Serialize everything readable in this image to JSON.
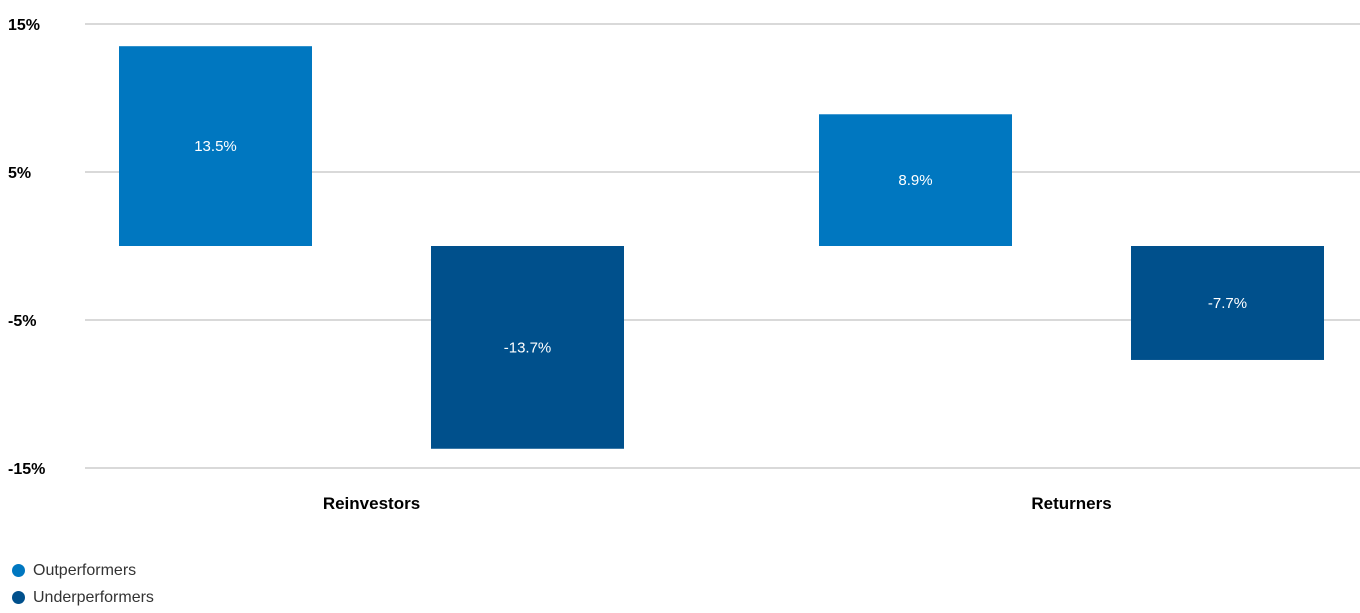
{
  "chart_data": {
    "type": "bar",
    "categories": [
      "Reinvestors",
      "Returners"
    ],
    "series": [
      {
        "name": "Outperformers",
        "values": [
          13.5,
          8.9
        ],
        "labels": [
          "13.5%",
          "8.9%"
        ],
        "color": "#0077c0"
      },
      {
        "name": "Underperformers",
        "values": [
          -13.7,
          -7.7
        ],
        "labels": [
          "-13.7%",
          "-7.7%"
        ],
        "color": "#00508c"
      }
    ],
    "yticks": [
      15,
      5,
      -5,
      -15
    ],
    "ytick_labels": [
      "15%",
      "5%",
      "-5%",
      "-15%"
    ],
    "ylim": [
      -15,
      15
    ],
    "grid": true,
    "legend_position": "bottom-left",
    "title": "",
    "xlabel": "",
    "ylabel": ""
  }
}
